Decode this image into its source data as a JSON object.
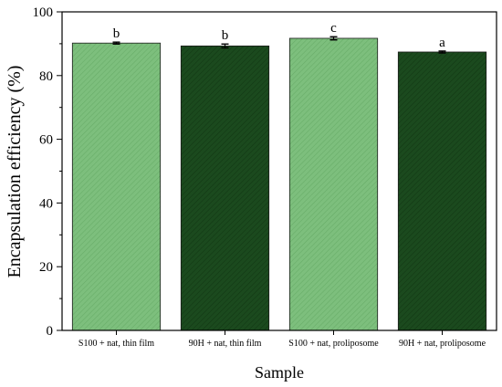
{
  "chart_data": {
    "type": "bar",
    "categories": [
      "S100 + nat, thin film",
      "90H + nat, thin film",
      "S100 + nat, proliposome",
      "90H + nat, proliposome"
    ],
    "values": [
      90.2,
      89.3,
      91.7,
      87.4
    ],
    "errors": [
      0.3,
      0.6,
      0.5,
      0.3
    ],
    "significance_letters": [
      "b",
      "b",
      "c",
      "a"
    ],
    "bar_colors": [
      "#7dbf7d",
      "#1b4a1e",
      "#7dbf7d",
      "#1b4a1e"
    ],
    "hatch": "diagonal",
    "xlabel": "Sample",
    "ylabel": "Encapsulation efficiency (%)",
    "ylim": [
      0,
      100
    ],
    "yticks": [
      0,
      20,
      40,
      60,
      80,
      100
    ],
    "grid": false,
    "legend": "none"
  }
}
